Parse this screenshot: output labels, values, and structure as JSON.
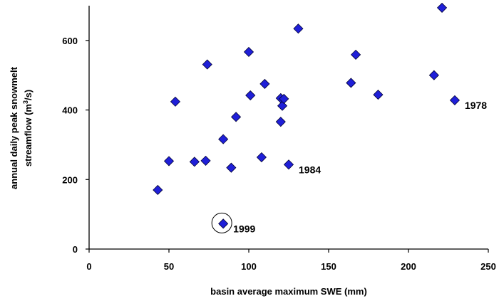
{
  "chart_data": {
    "type": "scatter",
    "xlabel": "basin average maximum SWE (mm)",
    "ylabel_line1": "annual daily peak snowmelt",
    "ylabel_line2_prefix": "streamflow (m",
    "ylabel_line2_sup": "3",
    "ylabel_line2_suffix": "/s)",
    "xlim": [
      0,
      250
    ],
    "ylim": [
      0,
      700
    ],
    "x_ticks": [
      0,
      50,
      100,
      150,
      200,
      250
    ],
    "y_ticks": [
      0,
      200,
      400,
      600
    ],
    "grid": false,
    "marker": "diamond",
    "marker_color": "#1f1fd8",
    "points": [
      {
        "x": 43,
        "y": 170
      },
      {
        "x": 50,
        "y": 253
      },
      {
        "x": 54,
        "y": 424
      },
      {
        "x": 66,
        "y": 251
      },
      {
        "x": 73,
        "y": 254
      },
      {
        "x": 74,
        "y": 531
      },
      {
        "x": 84,
        "y": 73
      },
      {
        "x": 84,
        "y": 316
      },
      {
        "x": 89,
        "y": 234
      },
      {
        "x": 92,
        "y": 380
      },
      {
        "x": 100,
        "y": 567
      },
      {
        "x": 101,
        "y": 442
      },
      {
        "x": 108,
        "y": 264
      },
      {
        "x": 110,
        "y": 475
      },
      {
        "x": 120,
        "y": 366
      },
      {
        "x": 120,
        "y": 434
      },
      {
        "x": 121,
        "y": 412
      },
      {
        "x": 122,
        "y": 432
      },
      {
        "x": 125,
        "y": 243
      },
      {
        "x": 131,
        "y": 634
      },
      {
        "x": 164,
        "y": 478
      },
      {
        "x": 167,
        "y": 559
      },
      {
        "x": 181,
        "y": 444
      },
      {
        "x": 216,
        "y": 500
      },
      {
        "x": 221,
        "y": 694
      },
      {
        "x": 229,
        "y": 428
      }
    ],
    "annotations": [
      {
        "text": "1999",
        "x": 84,
        "y": 73,
        "circled": true
      },
      {
        "text": "1984",
        "x": 125,
        "y": 243,
        "circled": false
      },
      {
        "text": "1978",
        "x": 229,
        "y": 428,
        "circled": false
      }
    ]
  }
}
